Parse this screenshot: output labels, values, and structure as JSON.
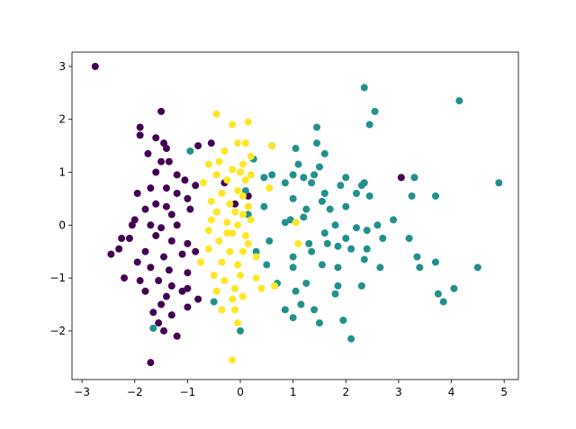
{
  "chart_data": {
    "type": "scatter",
    "xlim": [
      -3.19,
      5.27
    ],
    "ylim": [
      -2.92,
      3.27
    ],
    "xticks": [
      {
        "value": -3,
        "label": "−3"
      },
      {
        "value": -2,
        "label": "−2"
      },
      {
        "value": -1,
        "label": "−1"
      },
      0,
      1,
      2,
      3,
      4,
      5
    ],
    "yticks": [
      {
        "value": -2,
        "label": "−2"
      },
      {
        "value": -1,
        "label": "−1"
      },
      0,
      1,
      2,
      3
    ],
    "series": [
      {
        "color": "#440154",
        "x": [
          -2.75,
          -1.5,
          -1.9,
          -1.9,
          -1.6,
          -1.45,
          -1.4,
          -1.75,
          -0.8,
          -1.5,
          -1.35,
          -1.6,
          -1.2,
          -1.05,
          -0.85,
          -1.4,
          -1.7,
          -1.95,
          -1.2,
          -1.0,
          -1.6,
          -1.4,
          -1.8,
          -1.3,
          -0.95,
          -2.0,
          -2.05,
          -1.7,
          -1.5,
          -1.2,
          -2.1,
          -2.25,
          -1.6,
          -1.3,
          -1.0,
          -2.3,
          -2.45,
          -1.8,
          -1.45,
          -1.1,
          -0.85,
          -1.95,
          -1.7,
          -1.35,
          -1.0,
          -2.2,
          -1.9,
          -1.55,
          -1.3,
          -1.0,
          -1.8,
          -1.4,
          -1.1,
          -1.5,
          -1.0,
          -0.8,
          -1.65,
          -1.3,
          -1.55,
          -1.45,
          -1.2,
          -1.7,
          3.05,
          -0.3,
          -0.1,
          0.15,
          -0.55
        ],
        "y": [
          3.0,
          2.15,
          1.85,
          1.7,
          1.65,
          1.55,
          1.45,
          1.35,
          1.5,
          1.2,
          1.2,
          1.0,
          0.95,
          0.85,
          0.75,
          0.7,
          0.7,
          0.6,
          0.6,
          0.5,
          0.4,
          0.35,
          0.3,
          0.2,
          0.3,
          0.1,
          0.0,
          0.0,
          -0.05,
          0.0,
          -0.25,
          -0.25,
          -0.2,
          -0.3,
          -0.35,
          -0.45,
          -0.55,
          -0.5,
          -0.6,
          -0.55,
          -0.5,
          -0.7,
          -0.8,
          -0.85,
          -0.9,
          -1.0,
          -1.05,
          -1.05,
          -1.15,
          -1.2,
          -1.25,
          -1.35,
          -1.25,
          -1.5,
          -1.55,
          -1.4,
          -1.65,
          -1.7,
          -1.85,
          -2.0,
          -2.1,
          -2.6,
          0.9,
          0.8,
          0.4,
          0.55,
          1.55
        ]
      },
      {
        "color": "#21918c",
        "x": [
          2.35,
          4.15,
          2.55,
          2.45,
          1.45,
          1.45,
          0.6,
          1.05,
          -0.95,
          1.6,
          1.1,
          0.25,
          1.5,
          1.0,
          1.4,
          2.0,
          2.35,
          0.45,
          0.6,
          1.2,
          3.3,
          4.9,
          0.85,
          1.35,
          1.9,
          2.3,
          1.6,
          2.2,
          0.1,
          3.25,
          3.7,
          1.0,
          1.55,
          2.45,
          0.45,
          1.25,
          1.7,
          2.0,
          0.95,
          1.2,
          0.85,
          1.8,
          2.2,
          2.6,
          2.9,
          2.4,
          1.6,
          2.0,
          2.7,
          3.2,
          1.3,
          1.65,
          2.1,
          2.4,
          0.55,
          1.0,
          1.35,
          1.85,
          2.35,
          3.35,
          3.7,
          0.5,
          1.0,
          1.55,
          1.85,
          2.65,
          3.4,
          4.5,
          0.7,
          1.25,
          1.85,
          2.3,
          1.05,
          1.8,
          3.75,
          4.05,
          3.85,
          -0.5,
          1.15,
          1.4,
          0.85,
          1.5,
          1.0,
          1.95,
          -1.65,
          0.0,
          2.1,
          0.3,
          0.15
        ],
        "y": [
          2.6,
          2.35,
          2.15,
          1.9,
          1.85,
          1.55,
          1.5,
          1.45,
          1.4,
          1.35,
          1.15,
          1.25,
          1.1,
          0.95,
          0.95,
          0.9,
          0.8,
          0.9,
          0.95,
          0.9,
          0.9,
          0.8,
          0.8,
          0.8,
          0.75,
          0.75,
          0.6,
          0.6,
          0.65,
          0.55,
          0.55,
          0.5,
          0.45,
          0.55,
          0.35,
          0.3,
          0.3,
          0.35,
          0.1,
          0.15,
          0.05,
          0.0,
          -0.05,
          0.0,
          0.1,
          -0.1,
          -0.15,
          -0.25,
          -0.25,
          -0.25,
          -0.35,
          -0.35,
          -0.45,
          -0.45,
          -0.3,
          -0.6,
          -0.5,
          -0.4,
          -0.65,
          -0.6,
          -0.7,
          -0.75,
          -0.8,
          -0.75,
          -0.8,
          -0.8,
          -0.8,
          -0.8,
          -1.1,
          -1.1,
          -1.15,
          -1.15,
          -1.25,
          -1.3,
          -1.3,
          -1.2,
          -1.45,
          -1.45,
          -1.5,
          -1.6,
          -1.6,
          -1.85,
          -1.75,
          -1.8,
          -1.95,
          -2.0,
          -2.15,
          -0.5,
          0.2
        ]
      },
      {
        "color": "#fde725",
        "x": [
          -0.45,
          -0.15,
          0.15,
          -0.05,
          0.1,
          0.6,
          -0.3,
          0.2,
          -0.4,
          0.05,
          -0.6,
          -0.15,
          0.0,
          0.2,
          -0.45,
          -0.25,
          0.1,
          -0.7,
          0.55,
          -0.05,
          -0.35,
          0.05,
          -0.55,
          -0.2,
          0.15,
          -0.45,
          -0.1,
          0.05,
          -0.55,
          -0.25,
          0.2,
          1.05,
          -0.6,
          -0.15,
          0.1,
          -0.4,
          0.15,
          1.1,
          -0.6,
          -0.2,
          0.05,
          -0.35,
          -0.05,
          0.3,
          -0.75,
          -0.5,
          0.0,
          -0.3,
          0.3,
          -0.1,
          0.4,
          0.65,
          -0.45,
          -0.15,
          0.05,
          -0.35,
          -0.1,
          -0.05,
          -0.15,
          -0.25,
          -0.05
        ],
        "y": [
          2.1,
          1.9,
          1.95,
          1.55,
          1.55,
          1.5,
          1.4,
          1.3,
          1.2,
          1.15,
          1.15,
          1.05,
          1.0,
          0.95,
          0.95,
          0.85,
          0.85,
          0.8,
          0.7,
          0.65,
          0.6,
          0.55,
          0.45,
          0.4,
          0.35,
          0.25,
          0.25,
          0.2,
          0.1,
          0.05,
          0.1,
          0.05,
          -0.1,
          -0.15,
          -0.2,
          -0.3,
          -0.35,
          -0.35,
          -0.45,
          -0.5,
          -0.5,
          -0.7,
          -0.75,
          -0.6,
          -0.7,
          -0.95,
          -0.95,
          -1.05,
          -1.0,
          -1.2,
          -1.2,
          -1.15,
          -1.25,
          -1.4,
          -1.35,
          -1.6,
          -1.6,
          -1.85,
          -2.55,
          -0.15,
          0.0
        ]
      }
    ]
  }
}
